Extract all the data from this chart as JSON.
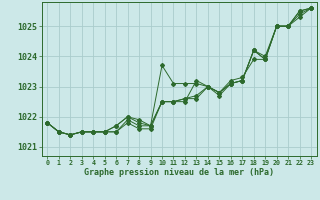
{
  "background_color": "#cce8e8",
  "grid_color": "#aacccc",
  "line_color": "#2d6a2d",
  "xlabel": "Graphe pression niveau de la mer (hPa)",
  "xlim": [
    -0.5,
    23.5
  ],
  "ylim": [
    1020.7,
    1025.8
  ],
  "yticks": [
    1021,
    1022,
    1023,
    1024,
    1025
  ],
  "xticks": [
    0,
    1,
    2,
    3,
    4,
    5,
    6,
    7,
    8,
    9,
    10,
    11,
    12,
    13,
    14,
    15,
    16,
    17,
    18,
    19,
    20,
    21,
    22,
    23
  ],
  "series": [
    [
      1021.8,
      1021.5,
      1021.4,
      1021.5,
      1021.5,
      1021.5,
      1021.5,
      1021.9,
      1021.7,
      1021.7,
      1023.7,
      1023.1,
      1023.1,
      1023.1,
      1023.0,
      1022.8,
      1023.1,
      1023.2,
      1024.2,
      1023.9,
      1025.0,
      1025.0,
      1025.5,
      1025.6
    ],
    [
      1021.8,
      1021.5,
      1021.4,
      1021.5,
      1021.5,
      1021.5,
      1021.5,
      1021.8,
      1021.6,
      1021.6,
      1022.5,
      1022.5,
      1022.6,
      1022.6,
      1023.0,
      1022.8,
      1023.1,
      1023.2,
      1024.2,
      1024.0,
      1025.0,
      1025.0,
      1025.5,
      1025.6
    ],
    [
      1021.8,
      1021.5,
      1021.4,
      1021.5,
      1021.5,
      1021.5,
      1021.7,
      1022.0,
      1021.9,
      1021.7,
      1022.5,
      1022.5,
      1022.6,
      1022.7,
      1023.0,
      1022.8,
      1023.2,
      1023.3,
      1023.9,
      1023.9,
      1025.0,
      1025.0,
      1025.4,
      1025.6
    ],
    [
      1021.8,
      1021.5,
      1021.4,
      1021.5,
      1021.5,
      1021.5,
      1021.7,
      1022.0,
      1021.8,
      1021.7,
      1022.5,
      1022.5,
      1022.5,
      1023.2,
      1023.0,
      1022.7,
      1023.1,
      1023.2,
      1024.2,
      1023.9,
      1025.0,
      1025.0,
      1025.3,
      1025.6
    ]
  ],
  "ytick_fontsize": 6.0,
  "xtick_fontsize": 4.8,
  "xlabel_fontsize": 6.0
}
